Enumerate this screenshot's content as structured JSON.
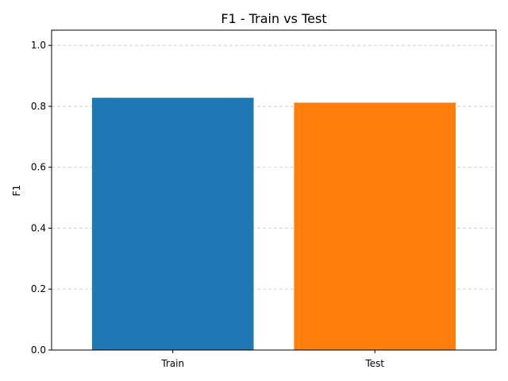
{
  "chart_data": {
    "type": "bar",
    "title": "F1 - Train vs Test",
    "xlabel": "",
    "ylabel": "F1",
    "categories": [
      "Train",
      "Test"
    ],
    "values": [
      0.828,
      0.812
    ],
    "colors": [
      "#1f77b4",
      "#ff7f0e"
    ],
    "ylim": [
      0,
      1.05
    ],
    "yticks": [
      0.0,
      0.2,
      0.4,
      0.6,
      0.8,
      1.0
    ],
    "ytick_labels": [
      "0.0",
      "0.2",
      "0.4",
      "0.6",
      "0.8",
      "1.0"
    ],
    "grid": "y-dashed"
  }
}
